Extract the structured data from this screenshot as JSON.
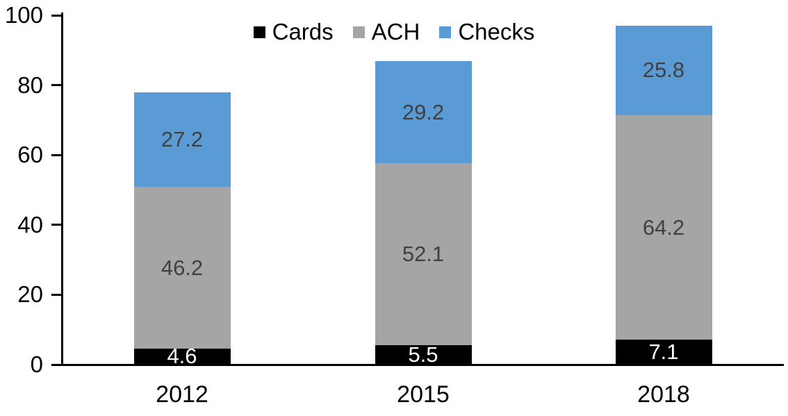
{
  "chart_data": {
    "type": "bar",
    "stacked": true,
    "title": "",
    "xlabel": "",
    "ylabel": "",
    "categories": [
      "2012",
      "2015",
      "2018"
    ],
    "series": [
      {
        "name": "Cards",
        "color": "#000000",
        "label_color": "#ffffff",
        "values": [
          4.6,
          5.5,
          7.1
        ],
        "labels": [
          "4.6",
          "5.5",
          "7.1"
        ]
      },
      {
        "name": "ACH",
        "color": "#a5a5a5",
        "label_color": "#404040",
        "values": [
          46.2,
          52.1,
          64.2
        ],
        "labels": [
          "46.2",
          "52.1",
          "64.2"
        ]
      },
      {
        "name": "Checks",
        "color": "#5b9bd5",
        "label_color": "#404040",
        "values": [
          27.2,
          29.2,
          25.8
        ],
        "labels": [
          "27.2",
          "29.2",
          "25.8"
        ]
      }
    ],
    "totals": [
      78.0,
      86.8,
      97.1
    ],
    "ylim": [
      0,
      100
    ],
    "yticks": [
      "0",
      "20",
      "40",
      "60",
      "80",
      "100"
    ],
    "ytick_values": [
      0,
      20,
      40,
      60,
      80,
      100
    ],
    "grid": false,
    "legend_position": "top-center",
    "axis_color": "#000000",
    "background_color": "#ffffff"
  }
}
